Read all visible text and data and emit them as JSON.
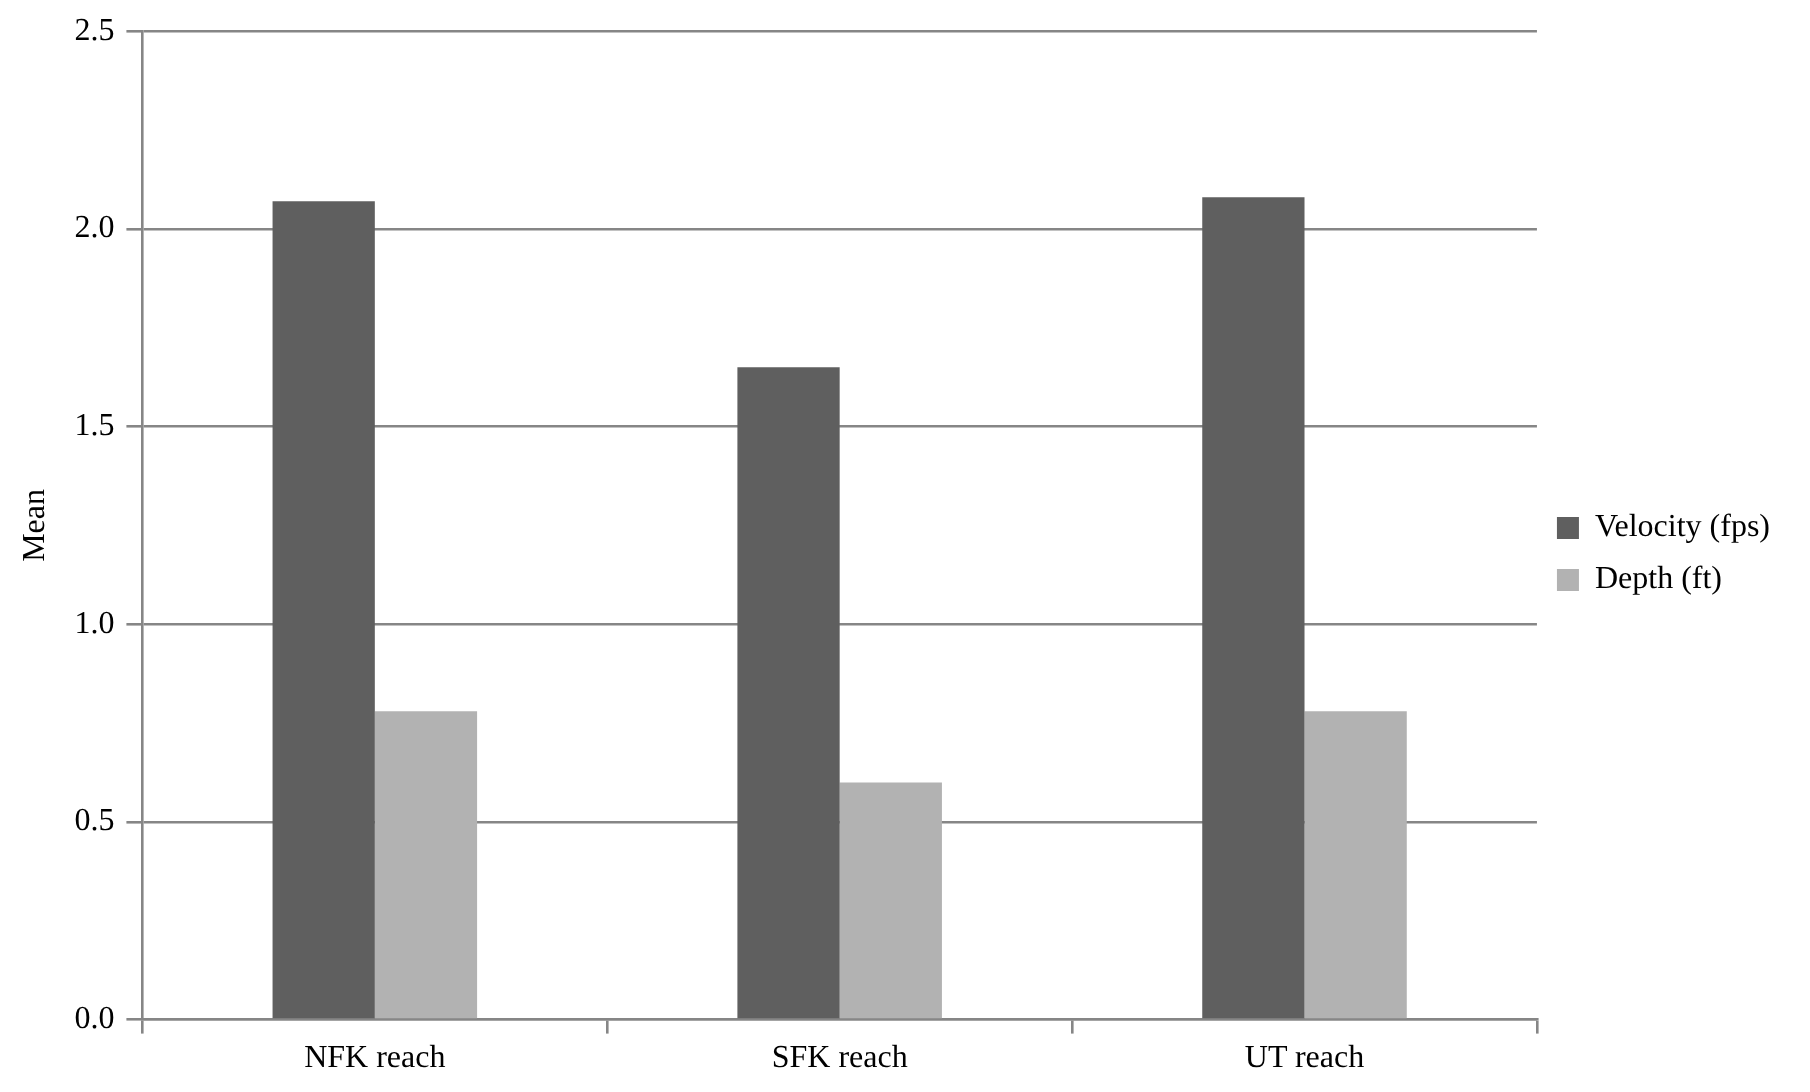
{
  "chart_data": {
    "type": "bar",
    "ylabel": "Mean",
    "categories": [
      "NFK reach",
      "SFK reach",
      "UT reach"
    ],
    "series": [
      {
        "name": "Velocity (fps)",
        "color": "#5f5f5f",
        "values": [
          2.07,
          1.65,
          2.08
        ]
      },
      {
        "name": "Depth (ft)",
        "color": "#b2b2b2",
        "values": [
          0.78,
          0.6,
          0.78
        ]
      }
    ],
    "ylim": [
      0,
      2.5
    ],
    "yticks": [
      {
        "value": 0,
        "label": "0.0"
      },
      {
        "value": 0.5,
        "label": "0.5"
      },
      {
        "value": 1,
        "label": "1.0"
      },
      {
        "value": 1.5,
        "label": "1.5"
      },
      {
        "value": 2,
        "label": "2.0"
      },
      {
        "value": 2.5,
        "label": "2.5"
      }
    ],
    "grid": "y",
    "legend": "right"
  }
}
